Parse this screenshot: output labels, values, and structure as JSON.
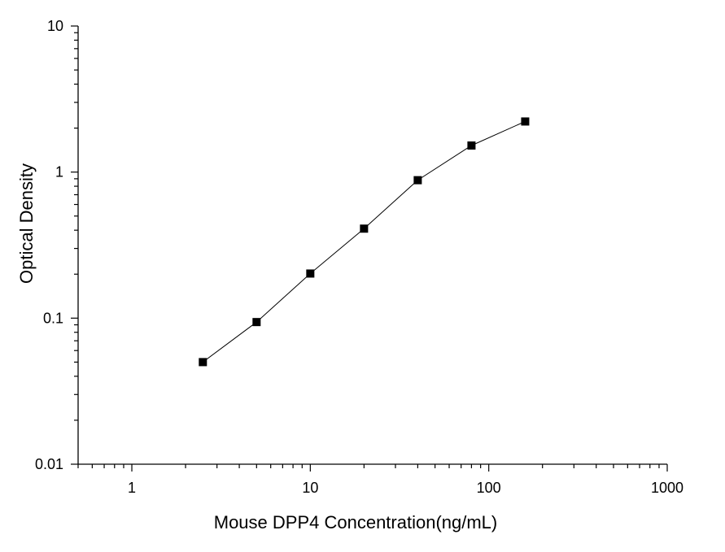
{
  "chart_data": {
    "type": "line",
    "title": "",
    "xlabel": "Mouse DPP4 Concentration(ng/mL)",
    "ylabel": "Optical  Density",
    "xscale": "log",
    "yscale": "log",
    "xlim": [
      0.5,
      1000
    ],
    "ylim": [
      0.01,
      10
    ],
    "x_ticks": [
      {
        "value": 1,
        "label": "1"
      },
      {
        "value": 10,
        "label": "10"
      },
      {
        "value": 100,
        "label": "100"
      },
      {
        "value": 1000,
        "label": "1000"
      }
    ],
    "y_ticks": [
      {
        "value": 0.01,
        "label": "0.01"
      },
      {
        "value": 0.1,
        "label": "0.1"
      },
      {
        "value": 1,
        "label": "1"
      },
      {
        "value": 10,
        "label": "10"
      }
    ],
    "grid": false,
    "legend": "none",
    "marker": "square",
    "color": "#000000",
    "series": [
      {
        "x": [
          2.5,
          5,
          10,
          20,
          40,
          80,
          160
        ],
        "y": [
          0.05,
          0.094,
          0.202,
          0.41,
          0.88,
          1.52,
          2.22
        ]
      }
    ]
  }
}
